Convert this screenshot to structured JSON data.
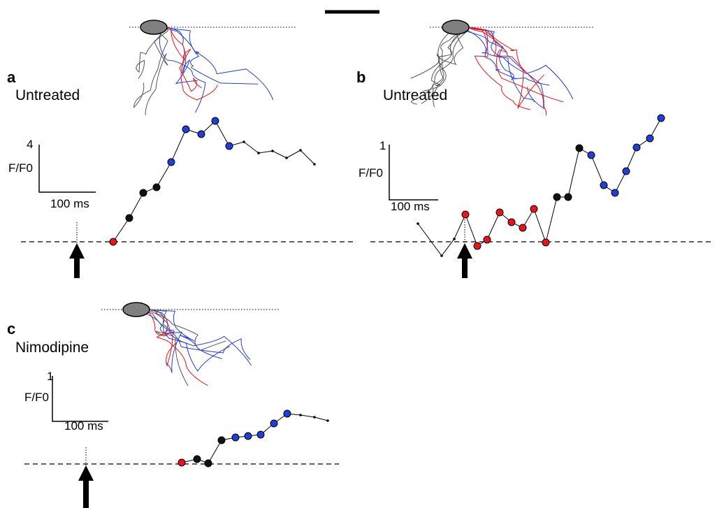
{
  "panels": [
    {
      "letter": "a",
      "condition": "Untreated",
      "scale_y": "4",
      "scale_y_label": "F/F0",
      "scale_x_label": "100 ms"
    },
    {
      "letter": "b",
      "condition": "Untreated",
      "scale_y": "1",
      "scale_y_label": "F/F0",
      "scale_x_label": "100 ms"
    },
    {
      "letter": "c",
      "condition": "Nimodipine",
      "scale_y": "1",
      "scale_y_label": "F/F0",
      "scale_x_label": "100 ms"
    }
  ]
}
